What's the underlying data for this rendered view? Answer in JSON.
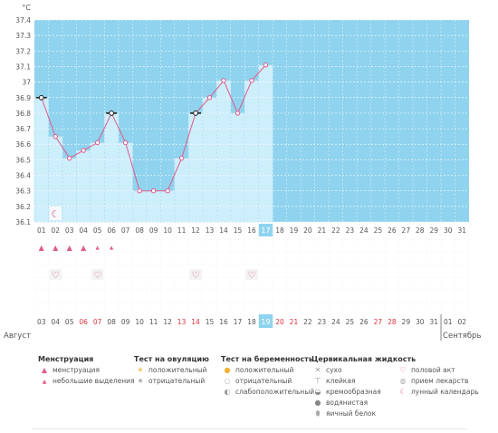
{
  "chart_data": {
    "type": "line",
    "ylabel": "°C",
    "ylim": [
      36.1,
      37.4
    ],
    "yticks": [
      "37.4",
      "37.3",
      "37.2",
      "37.1",
      "37",
      "36.9",
      "36.8",
      "36.7",
      "36.6",
      "36.5",
      "36.4",
      "36.3",
      "36.2",
      "36.1"
    ],
    "cycle_days": [
      "01",
      "02",
      "03",
      "04",
      "05",
      "06",
      "07",
      "08",
      "09",
      "10",
      "11",
      "12",
      "13",
      "14",
      "15",
      "16",
      "17",
      "18",
      "19",
      "20",
      "21",
      "22",
      "23",
      "24",
      "25",
      "26",
      "27",
      "28",
      "29",
      "30",
      "31"
    ],
    "temperatures": [
      36.9,
      36.65,
      36.51,
      36.56,
      36.61,
      36.8,
      36.61,
      36.3,
      36.3,
      36.3,
      36.51,
      36.8,
      36.9,
      37.01,
      36.8,
      37.01,
      37.11
    ],
    "marked_days": [
      "01",
      "06",
      "12"
    ],
    "current_day": "17",
    "moon_day": "02",
    "menstruation_days": [
      "01",
      "02",
      "03",
      "04"
    ],
    "spotting_days": [
      "05",
      "06"
    ],
    "intercourse_days": [
      "02",
      "05",
      "12",
      "16"
    ],
    "dates": [
      "03",
      "04",
      "05",
      "06",
      "07",
      "08",
      "09",
      "10",
      "11",
      "12",
      "13",
      "14",
      "15",
      "16",
      "17",
      "18",
      "19",
      "20",
      "21",
      "22",
      "23",
      "24",
      "25",
      "26",
      "27",
      "28",
      "29",
      "30",
      "31",
      "01",
      "02"
    ],
    "red_date_indices": [
      3,
      4,
      10,
      11,
      17,
      18,
      24,
      25
    ],
    "current_date": "19",
    "month_start": "Август",
    "month_next": "Сентябрь",
    "colors": {
      "plot_bg": "#8fd3ee",
      "bar": "#cdeefb",
      "bar_border": "#a8dbf0",
      "line": "#e05a8a",
      "current": "#8fd3ee",
      "red_text": "#e0303a",
      "grid": "#ffffff"
    }
  },
  "legend": {
    "menstruation": {
      "title": "Менструация",
      "items": [
        {
          "icon": "drop-large-icon",
          "label": "менструация"
        },
        {
          "icon": "drop-small-icon",
          "label": "небольшие выделения"
        }
      ]
    },
    "ovulation": {
      "title": "Тест на овуляцию",
      "items": [
        {
          "icon": "sun-positive-icon",
          "label": "положительный"
        },
        {
          "icon": "sun-negative-icon",
          "label": "отрицательный"
        }
      ]
    },
    "pregnancy": {
      "title": "Тест на беременность",
      "items": [
        {
          "icon": "circle-positive-icon",
          "label": "положительный"
        },
        {
          "icon": "circle-negative-icon",
          "label": "отрицательный"
        },
        {
          "icon": "circle-weak-icon",
          "label": "слабоположительный"
        }
      ]
    },
    "cervical": {
      "title": "Цервикальная жидкость",
      "items": [
        {
          "icon": "cross-dry-icon",
          "label": "сухо"
        },
        {
          "icon": "sticky-icon",
          "label": "клейкая"
        },
        {
          "icon": "creamy-icon",
          "label": "кремообразная"
        },
        {
          "icon": "watery-icon",
          "label": "водянистая"
        },
        {
          "icon": "egg-white-icon",
          "label": "яичный белок"
        }
      ]
    },
    "other": {
      "items": [
        {
          "icon": "heart-icon",
          "label": "половой акт"
        },
        {
          "icon": "pill-icon",
          "label": "прием лекарств"
        },
        {
          "icon": "moon-icon",
          "label": "лунный календарь"
        }
      ]
    }
  }
}
